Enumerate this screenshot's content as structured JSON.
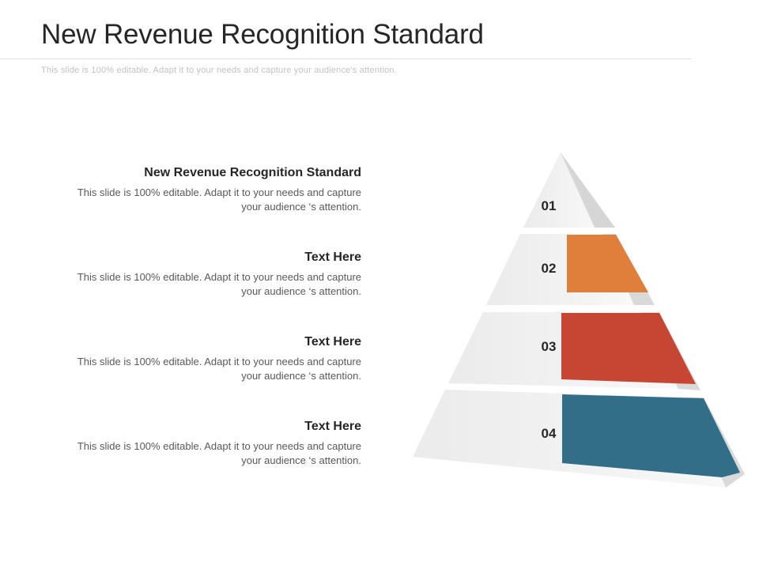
{
  "title": "New Revenue Recognition Standard",
  "subtitle": "This slide is 100% editable. Adapt it to your needs and capture your audience's attention.",
  "blocks": [
    {
      "heading": "New Revenue Recognition Standard",
      "body_line1": "This slide is 100% editable. Adapt it to your needs and capture",
      "body_line2": "your audience ‘s attention."
    },
    {
      "heading": "Text Here",
      "body_line1": "This slide is 100% editable. Adapt it to your needs and capture",
      "body_line2": "your audience ‘s attention."
    },
    {
      "heading": "Text Here",
      "body_line1": "This slide is 100% editable. Adapt it to your needs and capture",
      "body_line2": "your audience ‘s attention."
    },
    {
      "heading": "Text  Here",
      "body_line1": "This slide is 100% editable. Adapt it to your needs and capture",
      "body_line2": "your audience ‘s attention."
    }
  ],
  "pyramid": {
    "levels": [
      {
        "number": "01",
        "color": ""
      },
      {
        "number": "02",
        "color": "#e07e3c"
      },
      {
        "number": "03",
        "color": "#c74533"
      },
      {
        "number": "04",
        "color": "#336e88"
      }
    ]
  }
}
